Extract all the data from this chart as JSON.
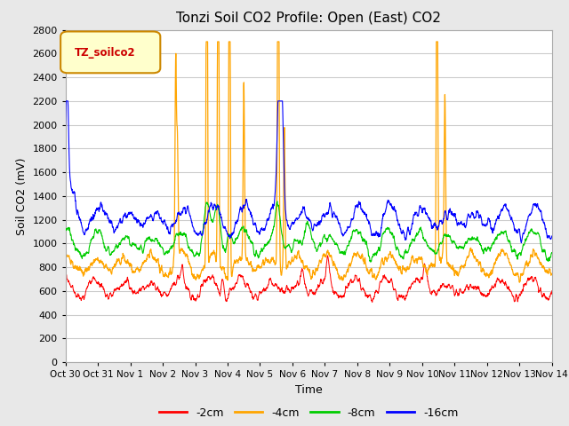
{
  "title": "Tonzi Soil CO2 Profile: Open (East) CO2",
  "ylabel": "Soil CO2 (mV)",
  "xlabel": "Time",
  "legend_label": "TZ_soilco2",
  "series_labels": [
    "-2cm",
    "-4cm",
    "-8cm",
    "-16cm"
  ],
  "series_colors": [
    "#ff0000",
    "#ffa500",
    "#0000ff",
    "#00cc00"
  ],
  "ylim": [
    0,
    2800
  ],
  "background_color": "#e8e8e8",
  "plot_bg": "#ffffff",
  "tick_dates": [
    "Oct 30",
    "Oct 31",
    "Nov 1",
    "Nov 2",
    "Nov 3",
    "Nov 4",
    "Nov 5",
    "Nov 6",
    "Nov 7",
    "Nov 8",
    "Nov 9",
    "Nov 10",
    "Nov 11",
    "Nov 12",
    "Nov 13",
    "Nov 14"
  ],
  "n_points": 2160
}
